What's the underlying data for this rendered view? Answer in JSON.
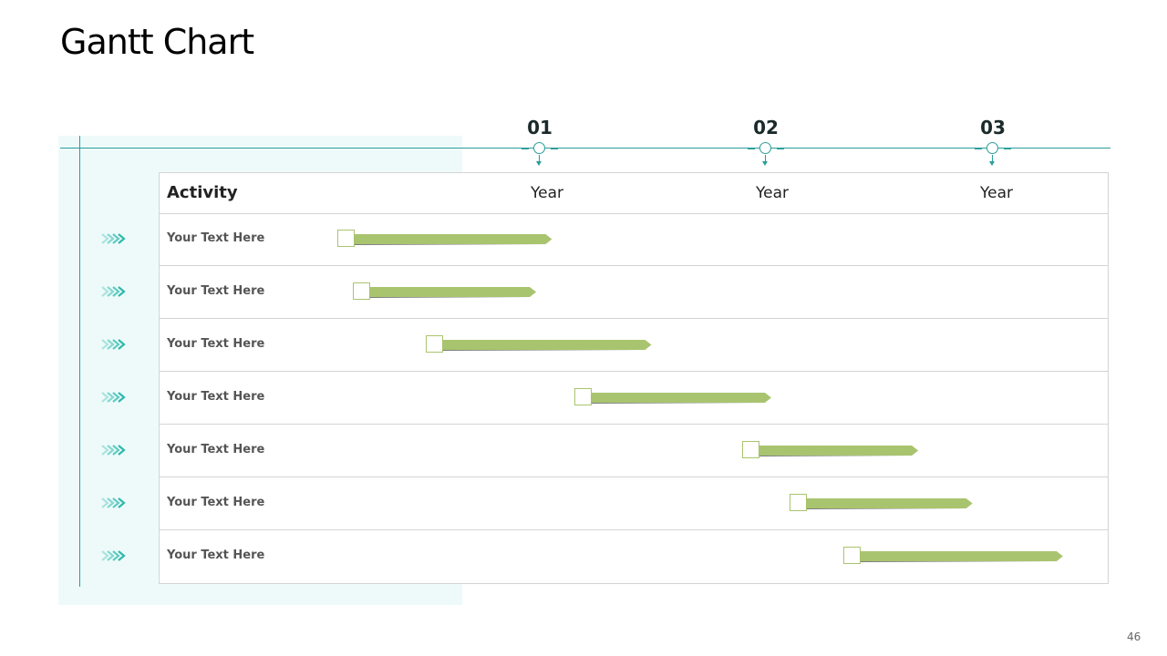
{
  "slide": {
    "title": "Gantt Chart",
    "page_number": "46"
  },
  "milestones": [
    {
      "label": "01"
    },
    {
      "label": "02"
    },
    {
      "label": "03"
    }
  ],
  "colors": {
    "accent_teal": "#2a9d9a",
    "bar_green": "#a9c46f",
    "panel_bg": "#eefafa",
    "chevron": "#2fb9ac"
  },
  "chart_data": {
    "type": "gantt",
    "column_header": "Activity",
    "period_labels": [
      "Year",
      "Year",
      "Year"
    ],
    "period_milestones": [
      "01",
      "02",
      "03"
    ],
    "tasks": [
      {
        "label": "Your Text Here",
        "start": 0.1,
        "end": 1.05
      },
      {
        "label": "Your Text Here",
        "start": 0.17,
        "end": 0.98
      },
      {
        "label": "Your Text Here",
        "start": 0.49,
        "end": 1.49
      },
      {
        "label": "Your Text Here",
        "start": 1.15,
        "end": 2.02
      },
      {
        "label": "Your Text Here",
        "start": 1.89,
        "end": 2.67
      },
      {
        "label": "Your Text Here",
        "start": 2.1,
        "end": 2.91
      },
      {
        "label": "Your Text Here",
        "start": 2.34,
        "end": 3.31
      }
    ]
  }
}
